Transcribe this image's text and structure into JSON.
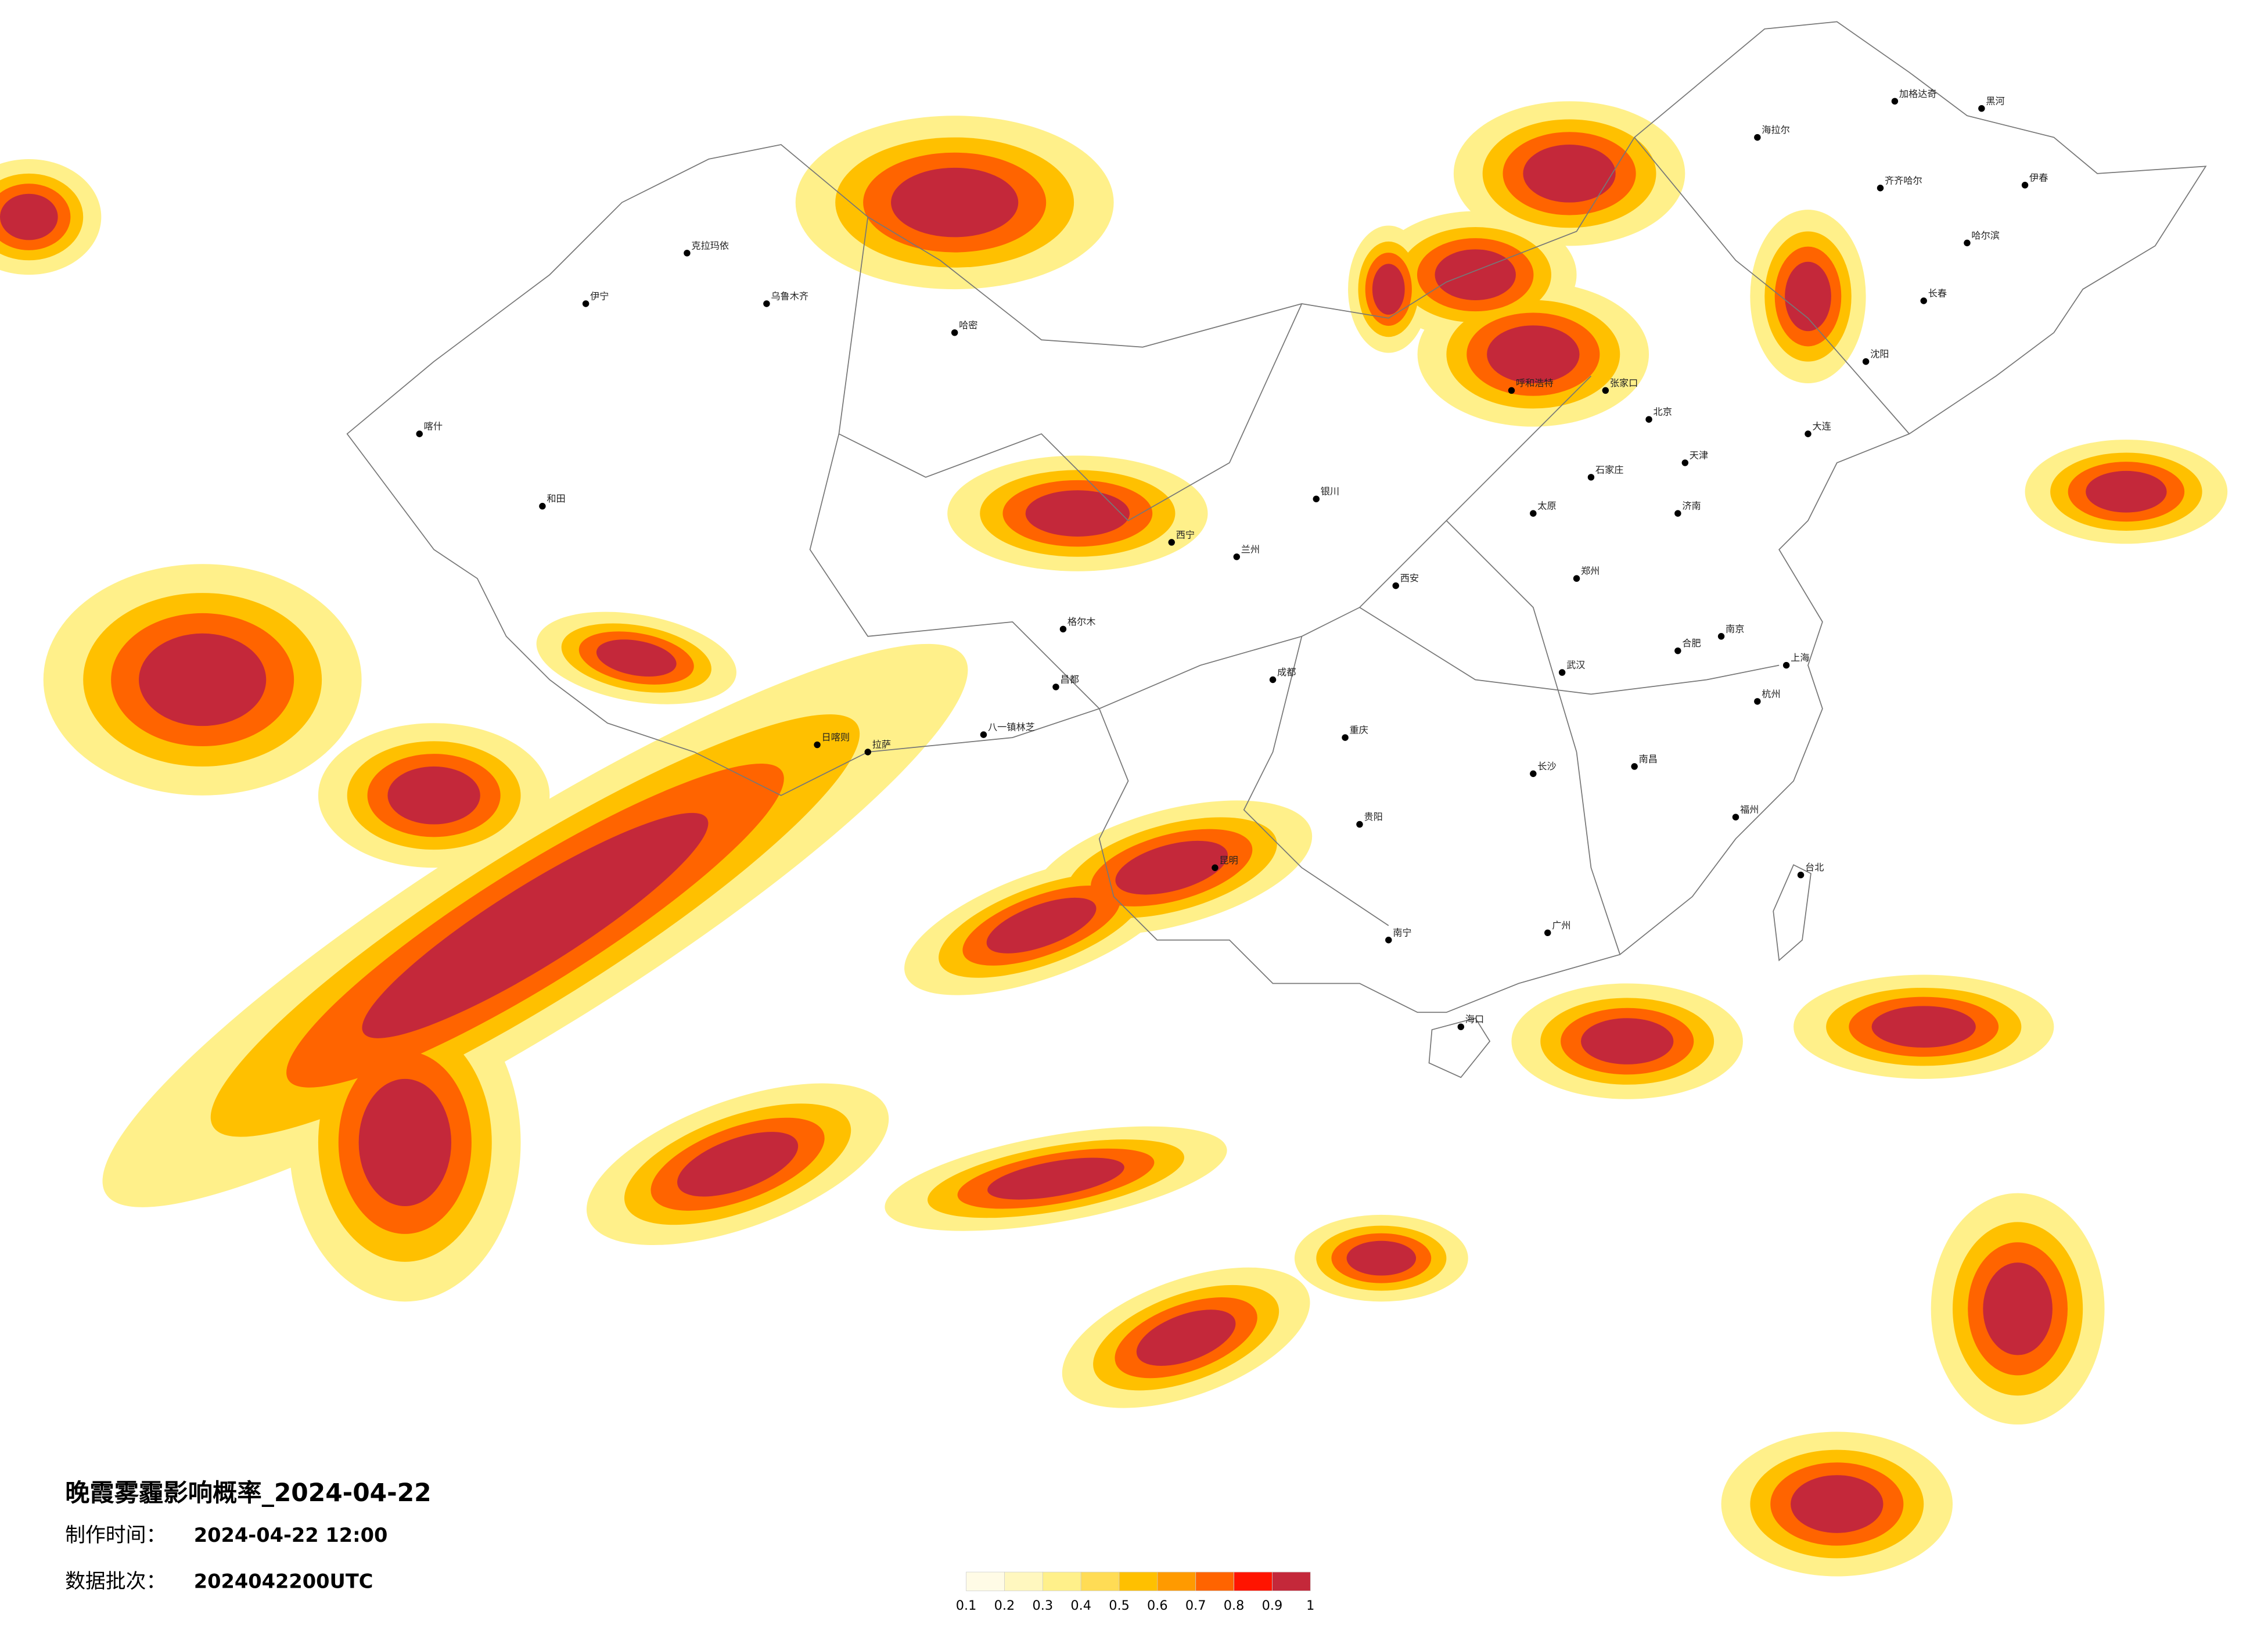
{
  "title": "晚霞雾霾影响概率_2024-04-22",
  "info": [
    {
      "label": "制作时间：",
      "value": "2024-04-22 12:00"
    },
    {
      "label": "数据批次：",
      "value": "2024042200UTC"
    }
  ],
  "legend": {
    "ticks": [
      0.1,
      0.2,
      0.3,
      0.4,
      0.5,
      0.6,
      0.7,
      0.8,
      0.9,
      1
    ],
    "colors": [
      "#fffbe6",
      "#fff7bf",
      "#fff08a",
      "#ffdc55",
      "#ffc000",
      "#ff9a00",
      "#ff6400",
      "#ff1400",
      "#c4283a"
    ]
  },
  "cities": [
    "哈尔滨",
    "长春",
    "沈阳",
    "大连",
    "北京",
    "天津",
    "石家庄",
    "太原",
    "呼和浩特",
    "济南",
    "郑州",
    "西安",
    "兰州",
    "西宁",
    "银川",
    "乌鲁木齐",
    "拉萨",
    "成都",
    "重庆",
    "贵阳",
    "昆明",
    "南宁",
    "广州",
    "长沙",
    "武汉",
    "南昌",
    "合肥",
    "南京",
    "上海",
    "杭州",
    "福州",
    "台北",
    "海口",
    "和田",
    "喀什",
    "伊宁",
    "克拉玛依",
    "哈密",
    "齐齐哈尔",
    "海拉尔",
    "加格达奇",
    "黑河",
    "伊春",
    "张家口",
    "格尔木",
    "日喀则",
    "昌都",
    "八一镇林芝"
  ]
}
